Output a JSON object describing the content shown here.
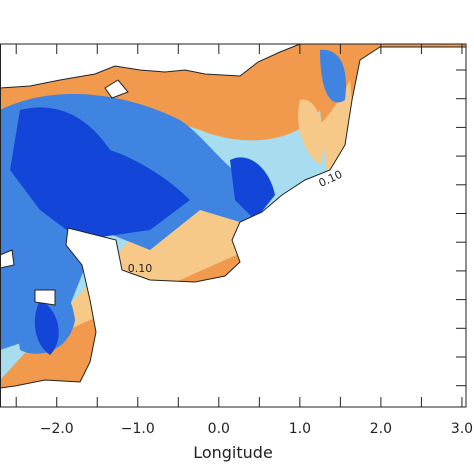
{
  "chart_data": {
    "type": "contour",
    "x_label": "Longitude",
    "xlim": [
      -2.7,
      3.05
    ],
    "xticks": [
      {
        "value": -2,
        "label": "−2.0"
      },
      {
        "value": -1,
        "label": "−1.0"
      },
      {
        "value": 0,
        "label": "0.0"
      },
      {
        "value": 1,
        "label": "1.0"
      },
      {
        "value": 2,
        "label": "2.0"
      },
      {
        "value": 3,
        "label": "3.0"
      }
    ],
    "minor_xticks": [
      -2.5,
      -1.5,
      -0.5,
      0.5,
      1.5,
      2.5
    ],
    "contour_labels": [
      "0.10",
      "0.10"
    ]
  }
}
